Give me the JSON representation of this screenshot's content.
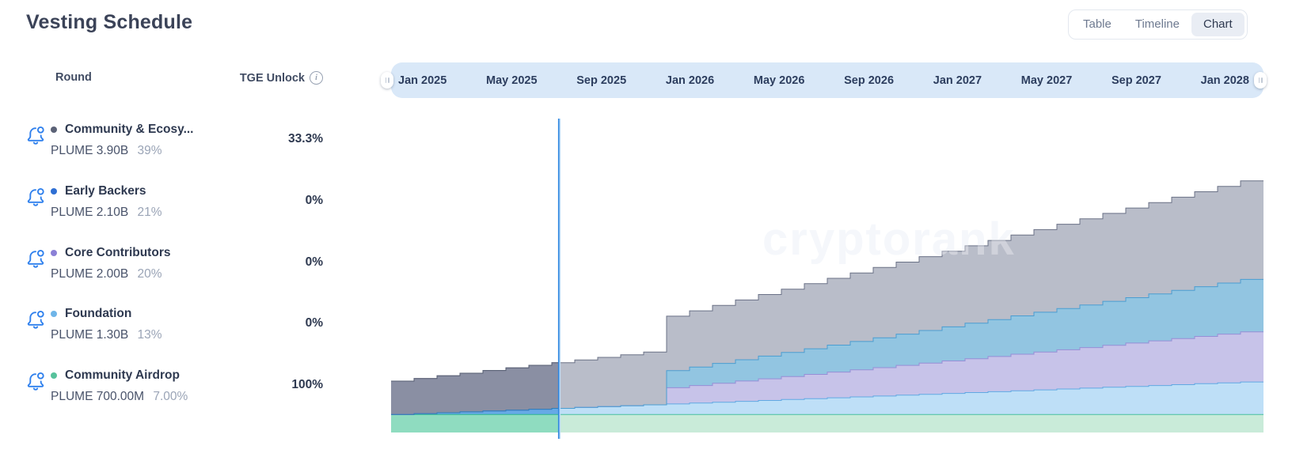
{
  "title": "Vesting Schedule",
  "tabs": {
    "table": "Table",
    "timeline": "Timeline",
    "chart": "Chart",
    "active": "Chart"
  },
  "table_header": {
    "round": "Round",
    "tge": "TGE Unlock"
  },
  "rounds": [
    {
      "name": "Community & Ecosy...",
      "amount": "PLUME 3.90B",
      "share": "39%",
      "tge": "33.3%",
      "color": "#5b6277"
    },
    {
      "name": "Early Backers",
      "amount": "PLUME 2.10B",
      "share": "21%",
      "tge": "0%",
      "color": "#2f6fd3"
    },
    {
      "name": "Core Contributors",
      "amount": "PLUME 2.00B",
      "share": "20%",
      "tge": "0%",
      "color": "#8b80d6"
    },
    {
      "name": "Foundation",
      "amount": "PLUME 1.30B",
      "share": "13%",
      "tge": "0%",
      "color": "#6fb5e8"
    },
    {
      "name": "Community Airdrop",
      "amount": "PLUME 700.00M",
      "share": "7.00%",
      "tge": "100%",
      "color": "#57c29c"
    }
  ],
  "watermark": "cryptorank",
  "colors": {
    "today_line": "#2e86e0",
    "today_line_glow": "#bcdcf8",
    "timeline_bg": "#d9e8f8"
  },
  "chart_data": {
    "type": "area",
    "subtype": "stacked-step-monthly",
    "title": "Cumulative token unlock schedule (% of total supply)",
    "x_unit": "months since TGE (Jan 2025)",
    "months_total": 38,
    "today_month": 7.3,
    "ylim": [
      0,
      100
    ],
    "grid": false,
    "legend_position": "left-panel",
    "tick_months": [
      0,
      4,
      8,
      12,
      16,
      20,
      24,
      28,
      32,
      36
    ],
    "tick_labels": [
      "Jan 2025",
      "May 2025",
      "Sep 2025",
      "Jan 2026",
      "May 2026",
      "Sep 2026",
      "Jan 2027",
      "May 2027",
      "Sep 2027",
      "Jan 2028"
    ],
    "series": [
      {
        "name": "Community Airdrop",
        "allocation_pct": 7,
        "tge_unlock_pct": 100,
        "fill": "#c9ebd9",
        "fill_past": "#8fdcc0",
        "stroke": "#47c0a0",
        "stroke_past": "#2bb392",
        "values": [
          7,
          7,
          7,
          7,
          7,
          7,
          7,
          7,
          7,
          7,
          7,
          7,
          7,
          7,
          7,
          7,
          7,
          7,
          7,
          7,
          7,
          7,
          7,
          7,
          7,
          7,
          7,
          7,
          7,
          7,
          7,
          7,
          7,
          7,
          7,
          7,
          7,
          7
        ]
      },
      {
        "name": "Foundation",
        "allocation_pct": 13,
        "tge_unlock_pct": 0,
        "fill": "#bedff7",
        "fill_past": "#66aae6",
        "stroke": "#61a9e3",
        "stroke_past": "#3f8ed6",
        "values": [
          0,
          0.34,
          0.68,
          1.03,
          1.37,
          1.71,
          2.05,
          2.39,
          2.74,
          3.08,
          3.42,
          3.76,
          4.11,
          4.45,
          4.79,
          5.13,
          5.47,
          5.82,
          6.16,
          6.5,
          6.84,
          7.18,
          7.53,
          7.87,
          8.21,
          8.55,
          8.89,
          9.24,
          9.58,
          9.92,
          10.26,
          10.61,
          10.95,
          11.29,
          11.63,
          11.97,
          12.32,
          12.66
        ]
      },
      {
        "name": "Core Contributors",
        "allocation_pct": 20,
        "tge_unlock_pct": 0,
        "fill": "#c7c3e9",
        "fill_past": "#a49ad8",
        "stroke": "#968ed6",
        "stroke_past": "#7f74c4",
        "values": [
          0,
          0,
          0,
          0,
          0,
          0,
          0,
          0,
          0,
          0,
          0,
          0,
          6.32,
          6.84,
          7.37,
          7.89,
          8.42,
          8.95,
          9.47,
          10,
          10.53,
          11.05,
          11.58,
          12.11,
          12.63,
          13.16,
          13.68,
          14.21,
          14.74,
          15.26,
          15.79,
          16.32,
          16.84,
          17.37,
          17.89,
          18.42,
          18.95,
          19.47
        ]
      },
      {
        "name": "Early Backers",
        "allocation_pct": 21,
        "tge_unlock_pct": 0,
        "fill": "#92c5e1",
        "fill_past": "#5a9fd0",
        "stroke": "#4a9dd1",
        "stroke_past": "#2e7fb8",
        "values": [
          0,
          0,
          0,
          0,
          0,
          0,
          0,
          0,
          0,
          0,
          0,
          0,
          6.63,
          7.18,
          7.74,
          8.29,
          8.84,
          9.39,
          9.95,
          10.5,
          11.05,
          11.61,
          12.16,
          12.71,
          13.26,
          13.82,
          14.37,
          14.92,
          15.47,
          16.03,
          16.58,
          17.13,
          17.68,
          18.24,
          18.79,
          19.34,
          19.89,
          20.45
        ]
      },
      {
        "name": "Community & Ecosystem",
        "allocation_pct": 39,
        "tge_unlock_pct": 33.3,
        "fill": "#b9bdc9",
        "fill_past": "#8a8fa3",
        "stroke": "#6a7186",
        "stroke_past": "#565d72",
        "values": [
          13,
          13.68,
          14.37,
          15.05,
          15.74,
          16.42,
          17.11,
          17.79,
          18.47,
          19.16,
          19.84,
          20.53,
          21.21,
          21.89,
          22.58,
          23.26,
          23.95,
          24.63,
          25.32,
          26,
          26.68,
          27.37,
          28.05,
          28.74,
          29.42,
          30.11,
          30.79,
          31.47,
          32.16,
          32.84,
          33.53,
          34.21,
          34.89,
          35.58,
          36.26,
          36.95,
          37.63,
          38.32
        ]
      }
    ]
  }
}
